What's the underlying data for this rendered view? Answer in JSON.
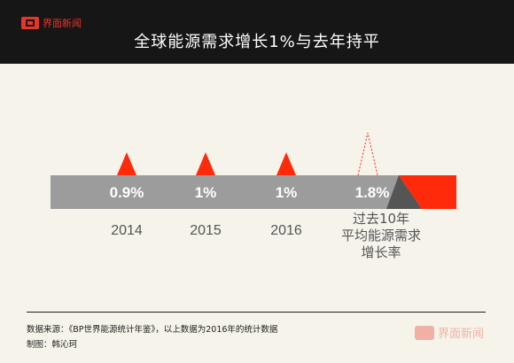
{
  "header": {
    "logo_text": "界面新闻",
    "title": "全球能源需求增长1%与去年持平"
  },
  "chart_data": {
    "type": "bar",
    "title": "全球能源需求增长1%与去年持平",
    "categories": [
      "2014",
      "2015",
      "2016",
      "过去10年平均能源需求增长率"
    ],
    "last_category_lines": [
      "过去10年",
      "平均能源需求",
      "增长率"
    ],
    "values": [
      0.9,
      1,
      1,
      1.8
    ],
    "value_labels": [
      "0.9%",
      "1%",
      "1%",
      "1.8%"
    ],
    "unit": "%",
    "colors": {
      "band": "#9c9c9c",
      "marker": "#ff2a0a",
      "dark": "#555555",
      "value_text": "#ffffff",
      "label_text": "#555555"
    }
  },
  "footer": {
    "source": "数据来源：《BP世界能源统计年鉴》，以上数据为2016年的统计数据",
    "author": "制图：韩沁珂",
    "watermark": "界面新闻"
  }
}
